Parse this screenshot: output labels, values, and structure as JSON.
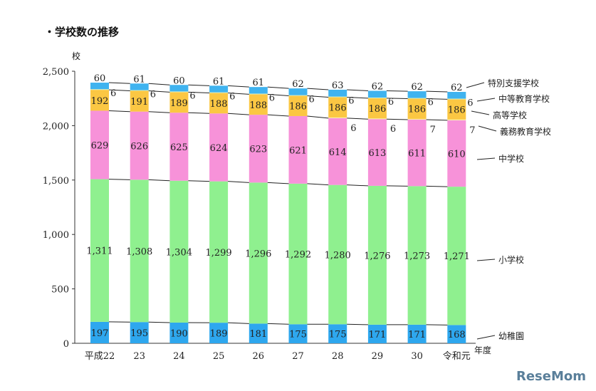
{
  "title": "・学校数の推移",
  "logo": "ReseMom",
  "chart_data": {
    "type": "bar",
    "stacked": true,
    "title": "・学校数の推移",
    "ylabel": "校",
    "xlabel": "年度",
    "ylim": [
      0,
      2500
    ],
    "yticks": [
      0,
      500,
      1000,
      1500,
      2000,
      2500
    ],
    "ytick_labels": [
      "0",
      "500",
      "1,000",
      "1,500",
      "2,000",
      "2,500"
    ],
    "grid": false,
    "legend": "right, leader lines",
    "categories": [
      "平成22",
      "23",
      "24",
      "25",
      "26",
      "27",
      "28",
      "29",
      "30",
      "令和元"
    ],
    "series": [
      {
        "name": "幼稚園",
        "color": "#2ea7ee",
        "values": [
          197,
          195,
          190,
          189,
          181,
          175,
          175,
          171,
          171,
          168
        ],
        "labels": [
          "197",
          "195",
          "190",
          "189",
          "181",
          "175",
          "175",
          "171",
          "171",
          "168"
        ]
      },
      {
        "name": "小学校",
        "color": "#8ff08f",
        "values": [
          1311,
          1308,
          1304,
          1299,
          1296,
          1292,
          1280,
          1276,
          1273,
          1271
        ],
        "labels": [
          "1,311",
          "1,308",
          "1,304",
          "1,299",
          "1,296",
          "1,292",
          "1,280",
          "1,276",
          "1,273",
          "1,271"
        ]
      },
      {
        "name": "中学校",
        "color": "#f792d9",
        "values": [
          629,
          626,
          625,
          624,
          623,
          621,
          614,
          613,
          611,
          610
        ],
        "labels": [
          "629",
          "626",
          "625",
          "624",
          "623",
          "621",
          "614",
          "613",
          "611",
          "610"
        ]
      },
      {
        "name": "義務教育学校",
        "color": "#f7f2a8",
        "values": [
          0,
          0,
          0,
          0,
          0,
          0,
          6,
          6,
          7,
          7
        ],
        "labels": [
          "",
          "",
          "",
          "",
          "",
          "",
          "6",
          "6",
          "7",
          "7"
        ]
      },
      {
        "name": "高等学校",
        "color": "#fbc743",
        "values": [
          192,
          191,
          189,
          188,
          188,
          186,
          186,
          186,
          186,
          186
        ],
        "labels": [
          "192",
          "191",
          "189",
          "188",
          "188",
          "186",
          "186",
          "186",
          "186",
          "186"
        ]
      },
      {
        "name": "中等教育学校",
        "color": "#d8f0c0",
        "values": [
          6,
          6,
          6,
          6,
          6,
          6,
          6,
          6,
          6,
          6
        ],
        "labels": [
          "6",
          "6",
          "6",
          "6",
          "6",
          "6",
          "6",
          "6",
          "6",
          "6"
        ]
      },
      {
        "name": "特別支援学校",
        "color": "#3fb3ef",
        "values": [
          60,
          61,
          60,
          61,
          61,
          62,
          63,
          62,
          62,
          62
        ],
        "labels": [
          "60",
          "61",
          "60",
          "61",
          "61",
          "62",
          "63",
          "62",
          "62",
          "62"
        ]
      }
    ]
  }
}
